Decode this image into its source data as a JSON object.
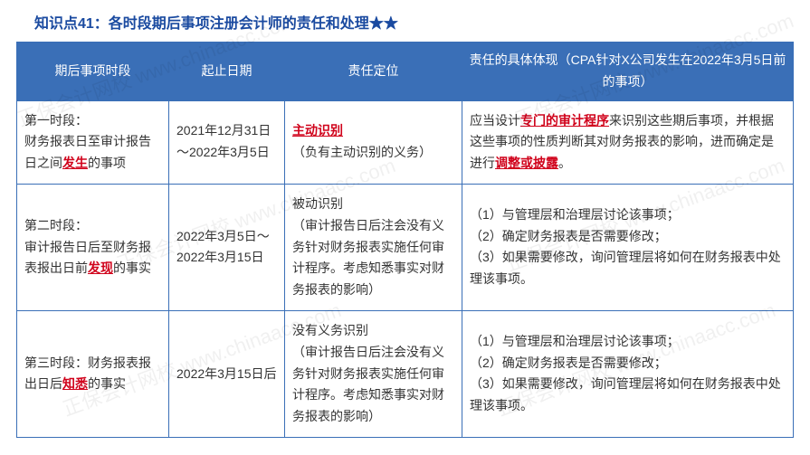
{
  "watermark_text": "正保会计网校 www.chinaacc.com",
  "title_prefix": "知识点41：各时段期后事项注册会计师的责任和处理",
  "title_stars": "★★",
  "header": {
    "col1": "期后事项时段",
    "col2": "起止日期",
    "col3": "责任定位",
    "col4": "责任的具体体现（CPA针对X公司发生在2022年3月5日前的事项）"
  },
  "row1": {
    "period_prefix": "第一时段：",
    "period_line": "财务报表日至审计报告日之间",
    "period_red": "发生",
    "period_suffix": "的事项",
    "dates": "2021年12月31日～2022年3月5日",
    "duty_red": "主动识别",
    "duty_note": "（负有主动识别的义务）",
    "detail_a": "应当设计",
    "detail_red1": "专门的审计程序",
    "detail_b": "来识别这些期后事项，并根据这些事项的性质判断其对财务报表的影响，进而确定是进行",
    "detail_red2": "调整或披露",
    "detail_c": "。"
  },
  "row2": {
    "period_prefix": "第二时段：",
    "period_line": "审计报告日后至财务报表报出日前",
    "period_red": "发现",
    "period_suffix": "的事实",
    "dates": "2022年3月5日～2022年3月15日",
    "duty_main": "被动识别",
    "duty_note": "（审计报告日后注会没有义务针对财务报表实施任何审计程序。考虑知悉事实对财务报表的影响）",
    "detail": "（1）与管理层和治理层讨论该事项；\n（2）确定财务报表是否需要修改；\n（3）如果需要修改，询问管理层将如何在财务报表中处理该事项。"
  },
  "row3": {
    "period_prefix": "第三时段：财务报表报出日后",
    "period_red": "知悉",
    "period_suffix": "的事实",
    "dates": "2022年3月15日后",
    "duty_main": "没有义务识别",
    "duty_note": "（审计报告日后注会没有义务针对财务报表实施任何审计程序。考虑知悉事实对财务报表的影响）",
    "detail": "（1）与管理层和治理层讨论该事项；\n（2）确定财务报表是否需要修改；\n（3）如果需要修改，询问管理层将如何在财务报表中处理该事项。"
  }
}
